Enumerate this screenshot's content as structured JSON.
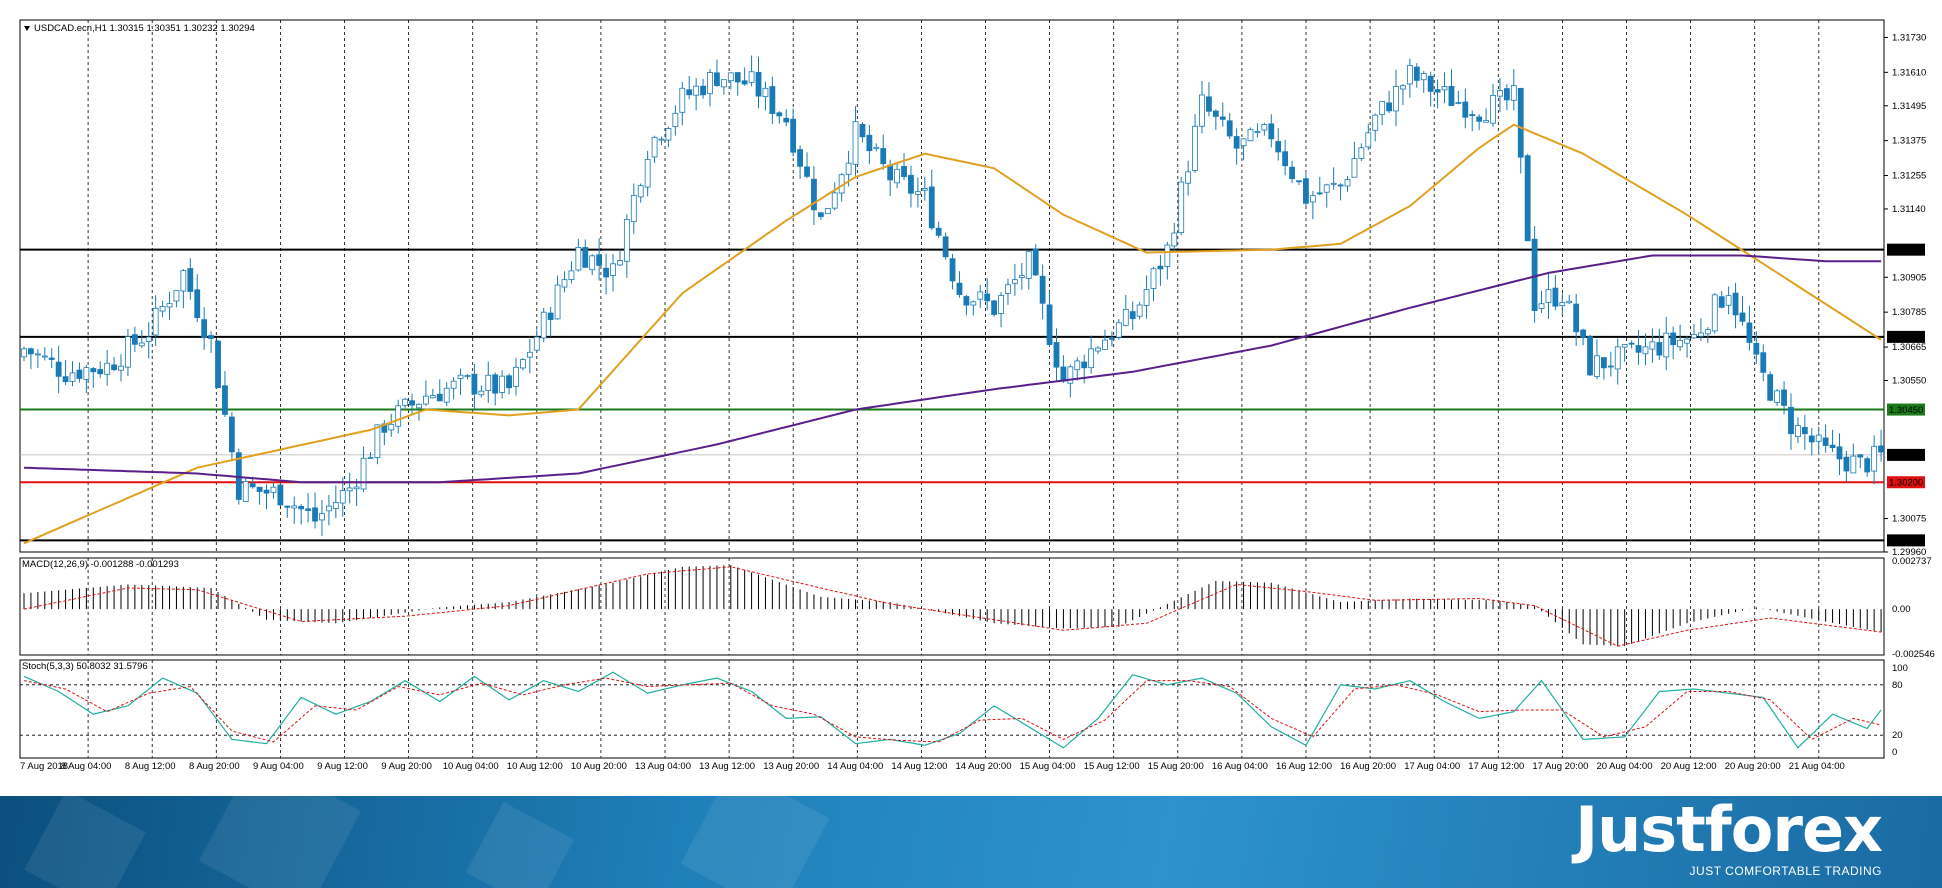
{
  "chart_data": {
    "type": "candlestick",
    "symbol_header": "USDCAD.ecn,H1  1.30315 1.30351 1.30232 1.30294",
    "price_axis": {
      "ylim": [
        1.2996,
        1.3179
      ],
      "tick_labels": [
        "1.31730",
        "1.31610",
        "1.31495",
        "1.31375",
        "1.31255",
        "1.31140",
        "1.30905",
        "1.30785",
        "1.30665",
        "1.30550",
        "1.30075",
        "1.29960"
      ]
    },
    "horizontal_levels": [
      {
        "label": "1.31000",
        "value": 1.31,
        "color": "#000000"
      },
      {
        "label": "1.30700",
        "value": 1.307,
        "color": "#000000"
      },
      {
        "label": "1.30450",
        "value": 1.3045,
        "color": "#1a7a1a"
      },
      {
        "label": "1.30200",
        "value": 1.302,
        "color": "#e01010"
      },
      {
        "label": "1.30000",
        "value": 1.3,
        "color": "#000000"
      }
    ],
    "current_price": {
      "label": "1.30294",
      "value": 1.30294
    },
    "series_colors": {
      "bull": "#ffffff",
      "bear": "#1a7ab5",
      "ma_fast": "#e0a020",
      "ma_slow": "#5a1f8a"
    },
    "time_labels": [
      "7 Aug 2018",
      "8 Aug 04:00",
      "8 Aug 12:00",
      "8 Aug 20:00",
      "9 Aug 04:00",
      "9 Aug 12:00",
      "9 Aug 20:00",
      "10 Aug 04:00",
      "10 Aug 12:00",
      "10 Aug 20:00",
      "13 Aug 04:00",
      "13 Aug 12:00",
      "13 Aug 20:00",
      "14 Aug 04:00",
      "14 Aug 12:00",
      "14 Aug 20:00",
      "15 Aug 04:00",
      "15 Aug 12:00",
      "15 Aug 20:00",
      "16 Aug 04:00",
      "16 Aug 12:00",
      "16 Aug 20:00",
      "17 Aug 04:00",
      "17 Aug 12:00",
      "17 Aug 20:00",
      "20 Aug 04:00",
      "20 Aug 12:00",
      "20 Aug 20:00",
      "21 Aug 04:00"
    ],
    "close_anchors": [
      [
        0,
        1.3066
      ],
      [
        6,
        1.3058
      ],
      [
        12,
        1.306
      ],
      [
        18,
        1.3072
      ],
      [
        23,
        1.3092
      ],
      [
        27,
        1.3068
      ],
      [
        31,
        1.3018
      ],
      [
        37,
        1.3016
      ],
      [
        42,
        1.3007
      ],
      [
        47,
        1.3018
      ],
      [
        52,
        1.304
      ],
      [
        58,
        1.305
      ],
      [
        64,
        1.3054
      ],
      [
        70,
        1.3052
      ],
      [
        75,
        1.3075
      ],
      [
        80,
        1.31
      ],
      [
        85,
        1.3092
      ],
      [
        90,
        1.3135
      ],
      [
        95,
        1.3152
      ],
      [
        100,
        1.316
      ],
      [
        105,
        1.3157
      ],
      [
        110,
        1.3145
      ],
      [
        115,
        1.311
      ],
      [
        120,
        1.314
      ],
      [
        125,
        1.3125
      ],
      [
        130,
        1.3118
      ],
      [
        135,
        1.3086
      ],
      [
        140,
        1.308
      ],
      [
        145,
        1.3095
      ],
      [
        150,
        1.3055
      ],
      [
        155,
        1.3068
      ],
      [
        160,
        1.3077
      ],
      [
        165,
        1.31
      ],
      [
        170,
        1.315
      ],
      [
        175,
        1.3135
      ],
      [
        180,
        1.314
      ],
      [
        185,
        1.3118
      ],
      [
        190,
        1.3122
      ],
      [
        195,
        1.3145
      ],
      [
        200,
        1.316
      ],
      [
        205,
        1.3153
      ],
      [
        210,
        1.3148
      ],
      [
        215,
        1.3152
      ],
      [
        218,
        1.3082
      ],
      [
        222,
        1.3085
      ],
      [
        226,
        1.306
      ],
      [
        231,
        1.3063
      ],
      [
        236,
        1.3067
      ],
      [
        241,
        1.307
      ],
      [
        246,
        1.3087
      ],
      [
        250,
        1.306
      ],
      [
        255,
        1.304
      ],
      [
        260,
        1.303
      ],
      [
        265,
        1.3026
      ],
      [
        268,
        1.3029
      ]
    ],
    "ma_fast_anchors": [
      [
        0,
        1.2999
      ],
      [
        25,
        1.3025
      ],
      [
        50,
        1.3038
      ],
      [
        58,
        1.3045
      ],
      [
        70,
        1.3043
      ],
      [
        80,
        1.3045
      ],
      [
        95,
        1.3085
      ],
      [
        110,
        1.311
      ],
      [
        120,
        1.3125
      ],
      [
        130,
        1.3133
      ],
      [
        140,
        1.3128
      ],
      [
        150,
        1.3112
      ],
      [
        162,
        1.3099
      ],
      [
        180,
        1.31
      ],
      [
        190,
        1.3102
      ],
      [
        200,
        1.3115
      ],
      [
        210,
        1.3135
      ],
      [
        215,
        1.3143
      ],
      [
        225,
        1.3133
      ],
      [
        240,
        1.3112
      ],
      [
        255,
        1.3089
      ],
      [
        268,
        1.3069
      ]
    ],
    "ma_slow_anchors": [
      [
        0,
        1.3025
      ],
      [
        25,
        1.3023
      ],
      [
        40,
        1.302
      ],
      [
        60,
        1.302
      ],
      [
        80,
        1.3023
      ],
      [
        100,
        1.3033
      ],
      [
        120,
        1.3045
      ],
      [
        140,
        1.3052
      ],
      [
        160,
        1.3058
      ],
      [
        180,
        1.3067
      ],
      [
        200,
        1.308
      ],
      [
        220,
        1.3092
      ],
      [
        235,
        1.3098
      ],
      [
        248,
        1.3098
      ],
      [
        260,
        1.3096
      ],
      [
        268,
        1.3096
      ]
    ],
    "macd": {
      "header": "MACD(12,26,9) -0.001288 -0.001293",
      "tick_labels": [
        "0.002737",
        "0.00",
        "-0.002546"
      ],
      "ylim": [
        -0.0026,
        0.0029
      ],
      "hist_anchors": [
        [
          0,
          0.0009
        ],
        [
          15,
          0.0014
        ],
        [
          27,
          0.0012
        ],
        [
          35,
          -0.0006
        ],
        [
          45,
          -0.0008
        ],
        [
          60,
          0.0001
        ],
        [
          70,
          0.0004
        ],
        [
          85,
          0.0015
        ],
        [
          95,
          0.0024
        ],
        [
          102,
          0.0025
        ],
        [
          115,
          0.0007
        ],
        [
          125,
          0.0004
        ],
        [
          140,
          -0.0008
        ],
        [
          150,
          -0.0011
        ],
        [
          158,
          -0.001
        ],
        [
          165,
          0.0003
        ],
        [
          172,
          0.0016
        ],
        [
          180,
          0.0015
        ],
        [
          190,
          0.0004
        ],
        [
          200,
          0.0006
        ],
        [
          212,
          0.0005
        ],
        [
          218,
          0.0002
        ],
        [
          225,
          -0.002
        ],
        [
          231,
          -0.0021
        ],
        [
          240,
          -0.0008
        ],
        [
          250,
          0.0001
        ],
        [
          260,
          -0.0007
        ],
        [
          268,
          -0.0013
        ]
      ],
      "signal_anchors": [
        [
          0,
          0.0
        ],
        [
          15,
          0.0012
        ],
        [
          25,
          0.0011
        ],
        [
          40,
          -0.0007
        ],
        [
          55,
          -0.0004
        ],
        [
          70,
          0.0002
        ],
        [
          90,
          0.002
        ],
        [
          102,
          0.0024
        ],
        [
          115,
          0.0012
        ],
        [
          125,
          0.0003
        ],
        [
          140,
          -0.0006
        ],
        [
          150,
          -0.0012
        ],
        [
          162,
          -0.0008
        ],
        [
          175,
          0.0014
        ],
        [
          185,
          0.001
        ],
        [
          195,
          0.0005
        ],
        [
          210,
          0.0006
        ],
        [
          218,
          0.0002
        ],
        [
          230,
          -0.0021
        ],
        [
          240,
          -0.0012
        ],
        [
          252,
          -0.0005
        ],
        [
          268,
          -0.0013
        ]
      ],
      "colors": {
        "hist": "#000000",
        "signal": "#e01010"
      }
    },
    "stochastic": {
      "header": "Stoch(5,3,3) 50.8032 31.5796",
      "tick_labels": [
        "100",
        "80",
        "20",
        "0"
      ],
      "levels": [
        80,
        20
      ],
      "k_anchors": [
        [
          0,
          90
        ],
        [
          5,
          72
        ],
        [
          10,
          45
        ],
        [
          15,
          55
        ],
        [
          20,
          88
        ],
        [
          25,
          70
        ],
        [
          30,
          15
        ],
        [
          35,
          10
        ],
        [
          40,
          65
        ],
        [
          45,
          45
        ],
        [
          50,
          60
        ],
        [
          55,
          85
        ],
        [
          60,
          60
        ],
        [
          65,
          90
        ],
        [
          70,
          62
        ],
        [
          75,
          85
        ],
        [
          80,
          72
        ],
        [
          85,
          95
        ],
        [
          90,
          70
        ],
        [
          95,
          80
        ],
        [
          100,
          88
        ],
        [
          105,
          72
        ],
        [
          110,
          40
        ],
        [
          115,
          42
        ],
        [
          120,
          10
        ],
        [
          125,
          15
        ],
        [
          130,
          8
        ],
        [
          135,
          22
        ],
        [
          140,
          55
        ],
        [
          145,
          30
        ],
        [
          150,
          5
        ],
        [
          155,
          40
        ],
        [
          160,
          92
        ],
        [
          165,
          80
        ],
        [
          170,
          88
        ],
        [
          175,
          70
        ],
        [
          180,
          30
        ],
        [
          185,
          8
        ],
        [
          190,
          80
        ],
        [
          195,
          75
        ],
        [
          200,
          85
        ],
        [
          205,
          60
        ],
        [
          210,
          40
        ],
        [
          215,
          48
        ],
        [
          219,
          85
        ],
        [
          225,
          15
        ],
        [
          231,
          18
        ],
        [
          236,
          72
        ],
        [
          241,
          75
        ],
        [
          246,
          70
        ],
        [
          251,
          65
        ],
        [
          256,
          5
        ],
        [
          261,
          45
        ],
        [
          266,
          28
        ],
        [
          268,
          50
        ]
      ],
      "d_anchors": [
        [
          0,
          85
        ],
        [
          6,
          75
        ],
        [
          12,
          48
        ],
        [
          18,
          70
        ],
        [
          24,
          78
        ],
        [
          30,
          25
        ],
        [
          36,
          12
        ],
        [
          42,
          55
        ],
        [
          48,
          50
        ],
        [
          54,
          78
        ],
        [
          60,
          68
        ],
        [
          66,
          82
        ],
        [
          72,
          68
        ],
        [
          78,
          80
        ],
        [
          84,
          88
        ],
        [
          90,
          78
        ],
        [
          96,
          80
        ],
        [
          102,
          82
        ],
        [
          108,
          55
        ],
        [
          114,
          45
        ],
        [
          120,
          18
        ],
        [
          126,
          14
        ],
        [
          132,
          12
        ],
        [
          138,
          38
        ],
        [
          144,
          40
        ],
        [
          150,
          15
        ],
        [
          156,
          38
        ],
        [
          162,
          85
        ],
        [
          168,
          85
        ],
        [
          174,
          78
        ],
        [
          180,
          40
        ],
        [
          186,
          18
        ],
        [
          192,
          75
        ],
        [
          198,
          80
        ],
        [
          204,
          68
        ],
        [
          210,
          48
        ],
        [
          216,
          50
        ],
        [
          222,
          50
        ],
        [
          228,
          18
        ],
        [
          234,
          30
        ],
        [
          240,
          72
        ],
        [
          246,
          72
        ],
        [
          252,
          62
        ],
        [
          258,
          15
        ],
        [
          264,
          40
        ],
        [
          268,
          32
        ]
      ],
      "colors": {
        "k": "#20b0a0",
        "d": "#e01010"
      }
    }
  },
  "footer": {
    "brand_name": "Justforex",
    "tagline": "JUST COMFORTABLE TRADING"
  }
}
